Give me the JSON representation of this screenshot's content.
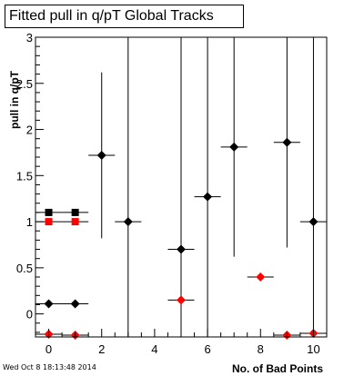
{
  "title": "Fitted pull in q/pT  Global Tracks",
  "timestamp": "Wed Oct  8 18:13:48 2014",
  "colors": {
    "black_series": "#000000",
    "red_series": "#ff0000",
    "frame": "#000000"
  },
  "chart_data": {
    "type": "scatter",
    "title": "Fitted pull in q/pT  Global Tracks",
    "xlabel": "No. of Bad Points",
    "ylabel": "pull in q/pT",
    "xlim": [
      -0.5,
      10.5
    ],
    "ylim": [
      -0.25,
      3
    ],
    "x_ticks": [
      0,
      2,
      4,
      6,
      8,
      10
    ],
    "y_ticks": [
      0,
      0.5,
      1,
      1.5,
      2,
      2.5,
      3
    ],
    "grid": false,
    "series": [
      {
        "marker": "square",
        "color": "#000000",
        "points": [
          {
            "x": 0,
            "y": 1.1,
            "xerr": 0.5,
            "yerr": 0.0
          },
          {
            "x": 1,
            "y": 1.1,
            "xerr": 0.5,
            "yerr": 0.0
          }
        ]
      },
      {
        "marker": "square",
        "color": "#ff0000",
        "points": [
          {
            "x": 0,
            "y": 1.0,
            "xerr": 0.5,
            "yerr": 0.0
          },
          {
            "x": 1,
            "y": 1.0,
            "xerr": 0.5,
            "yerr": 0.0
          }
        ]
      },
      {
        "marker": "diamond",
        "color": "#000000",
        "points": [
          {
            "x": 0,
            "y": 0.11,
            "xerr": 0.5,
            "yerr": 0.0
          },
          {
            "x": 1,
            "y": 0.11,
            "xerr": 0.5,
            "yerr": 0.0
          },
          {
            "x": 2,
            "y": 1.72,
            "xerr": 0.5,
            "yerr": 0.9
          },
          {
            "x": 3,
            "y": 1.0,
            "xerr": 0.5,
            "yerr": 2.0
          },
          {
            "x": 5,
            "y": 0.7,
            "xerr": 0.5,
            "yerr": 2.3
          },
          {
            "x": 6,
            "y": 1.27,
            "xerr": 0.5,
            "yerr": 1.73
          },
          {
            "x": 7,
            "y": 1.81,
            "xerr": 0.5,
            "yerr": 1.19
          },
          {
            "x": 9,
            "y": 1.86,
            "xerr": 0.5,
            "yerr": 1.14
          },
          {
            "x": 10,
            "y": 1.0,
            "xerr": 0.5,
            "yerr": 2.0
          }
        ]
      },
      {
        "marker": "diamond",
        "color": "#ff0000",
        "points": [
          {
            "x": 0,
            "y": -0.22,
            "xerr": 0.5,
            "yerr": 0.0
          },
          {
            "x": 1,
            "y": -0.23,
            "xerr": 0.5,
            "yerr": 0.0
          },
          {
            "x": 5,
            "y": 0.15,
            "xerr": 0.5,
            "yerr": 0.0
          },
          {
            "x": 8,
            "y": 0.4,
            "xerr": 0.5,
            "yerr": 0.0
          },
          {
            "x": 9,
            "y": -0.23,
            "xerr": 0.5,
            "yerr": 0.0
          },
          {
            "x": 10,
            "y": -0.21,
            "xerr": 0.5,
            "yerr": 0.0
          }
        ]
      }
    ]
  }
}
